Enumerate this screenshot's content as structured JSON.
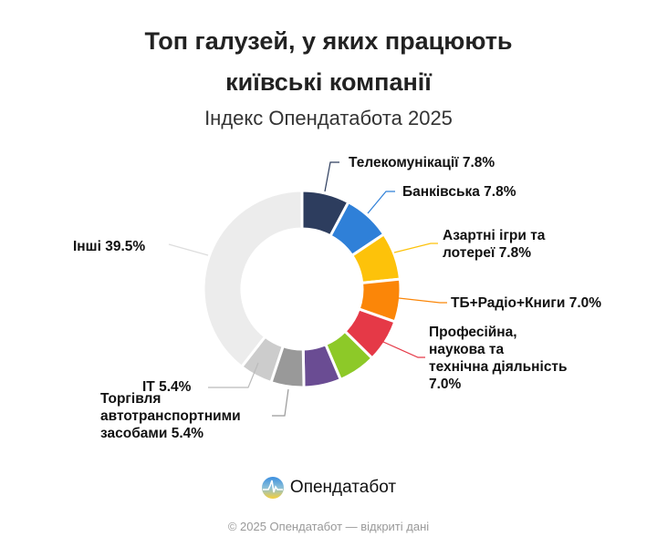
{
  "title_line1": "Топ галузей, у яких працюють",
  "title_line2": "київські компанії",
  "subtitle": "Індекс Опендатабота 2025",
  "chart_data": {
    "type": "pie",
    "donut": true,
    "legend": "none",
    "categories": [
      "Телекомунікації",
      "Банківська",
      "Азартні ігри та лотереї",
      "ТБ+Радіо+Книги",
      "Професійна, наукова та технічна діяльність",
      "",
      "",
      "Торгівля автотранспортними засобами",
      "IT",
      "Інші"
    ],
    "values": [
      7.8,
      7.8,
      7.8,
      7.0,
      7.0,
      6.2,
      6.1,
      5.4,
      5.4,
      39.5
    ],
    "colors": [
      "#2d3d5e",
      "#2f80d8",
      "#fdc20a",
      "#fb8608",
      "#e53947",
      "#8dc928",
      "#6a4c93",
      "#999999",
      "#cccccc",
      "#ececec"
    ],
    "labels": [
      {
        "lines": [
          "Телекомунікації 7.8%"
        ]
      },
      {
        "lines": [
          "Банківська 7.8%"
        ]
      },
      {
        "lines": [
          "Азартні ігри та",
          "лотереї 7.8%"
        ]
      },
      {
        "lines": [
          "ТБ+Радіо+Книги 7.0%"
        ]
      },
      {
        "lines": [
          "Професійна,",
          "наукова та",
          "технічна діяльність",
          "7.0%"
        ]
      },
      null,
      null,
      {
        "lines": [
          "Торгівля",
          "автотранспортними",
          "засобами 5.4%"
        ]
      },
      {
        "lines": [
          "IT 5.4%"
        ]
      },
      {
        "lines": [
          "Інші 39.5%"
        ]
      }
    ]
  },
  "brand": {
    "name": "Опендатабот",
    "logo": "opendatabot-logo"
  },
  "footer": "© 2025 Опендатабот — відкриті дані"
}
